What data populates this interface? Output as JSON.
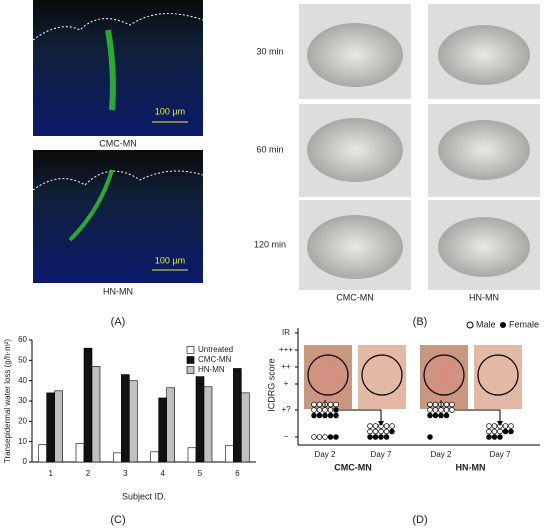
{
  "panel_a": {
    "label": "(A)",
    "images": [
      {
        "scale": "100 µm",
        "caption": "CMC-MN"
      },
      {
        "scale": "100 µm",
        "caption": "HN-MN"
      }
    ]
  },
  "panel_b": {
    "label": "(B)",
    "rows": [
      "30 min",
      "60 min",
      "120 min"
    ],
    "columns": [
      "CMC-MN",
      "HN-MN"
    ]
  },
  "chart_data": {
    "type": "bar",
    "panel_label": "(C)",
    "x_label": "Subject ID.",
    "y_label": "Transepidermal water loss (g/h·m²)",
    "categories": [
      "1",
      "2",
      "3",
      "4",
      "5",
      "6"
    ],
    "series": [
      {
        "name": "Untreated",
        "color": "#ffffff",
        "values": [
          8.5,
          9,
          4.5,
          5,
          7,
          8
        ]
      },
      {
        "name": "CMC-MN",
        "color": "#111111",
        "values": [
          34,
          56,
          43,
          31.5,
          42,
          46
        ]
      },
      {
        "name": "HN-MN",
        "color": "#c0c0c0",
        "values": [
          35,
          47,
          40,
          36.5,
          37,
          34
        ]
      }
    ],
    "ylim": [
      0,
      60
    ],
    "yticks": [
      0,
      10,
      20,
      30,
      40,
      50,
      60
    ],
    "legend": "upper-right"
  },
  "panel_d": {
    "label": "(D)",
    "y_label": "ICDRG score",
    "scores": [
      "IR",
      "+++",
      "++",
      "+",
      "+?",
      "−"
    ],
    "legend": [
      "Male",
      "Female"
    ],
    "groups": [
      {
        "name": "CMC-MN",
        "days": [
          {
            "day": "Day 2",
            "counts": [
              {
                "score": 4,
                "male": 9,
                "female": 6
              },
              {
                "score": 5,
                "male": 3,
                "female": 2
              }
            ]
          },
          {
            "day": "Day 7",
            "counts": [
              {
                "score": 5,
                "male": 9,
                "female": 5
              }
            ]
          }
        ]
      },
      {
        "name": "HN-MN",
        "days": [
          {
            "day": "Day 2",
            "counts": [
              {
                "score": 4,
                "male": 10,
                "female": 4
              },
              {
                "score": 5,
                "male": 0,
                "female": 1
              }
            ]
          },
          {
            "day": "Day 7",
            "counts": [
              {
                "score": 5,
                "male": 8,
                "female": 5
              }
            ]
          }
        ]
      }
    ]
  }
}
